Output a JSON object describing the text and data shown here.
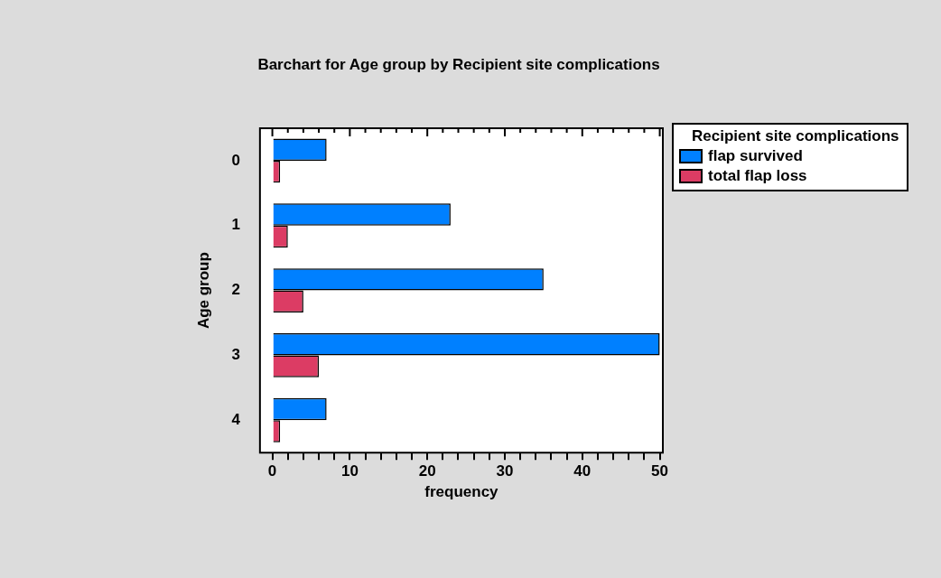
{
  "chart_data": {
    "type": "bar",
    "orientation": "horizontal",
    "title": "Barchart for Age group by Recipient site complications",
    "xlabel": "frequency",
    "ylabel": "Age group",
    "legend_title": "Recipient site complications",
    "legend": "top right",
    "categories": [
      "0",
      "1",
      "2",
      "3",
      "4"
    ],
    "series": [
      {
        "name": "flap survived",
        "color": "#0080ff",
        "values": [
          7,
          23,
          35,
          50,
          7
        ]
      },
      {
        "name": "total flap loss",
        "color": "#dc3c64",
        "values": [
          1,
          2,
          4,
          6,
          1
        ]
      }
    ],
    "xlim": [
      -1.6,
      50.4
    ],
    "xticks": [
      0,
      {
        "value": 2,
        "label": null
      },
      {
        "value": 4,
        "label": null
      },
      {
        "value": 6,
        "label": null
      },
      {
        "value": 8,
        "label": null
      },
      10,
      {
        "value": 12,
        "label": null
      },
      {
        "value": 14,
        "label": null
      },
      {
        "value": 16,
        "label": null
      },
      {
        "value": 18,
        "label": null
      },
      20,
      {
        "value": 22,
        "label": null
      },
      {
        "value": 24,
        "label": null
      },
      {
        "value": 26,
        "label": null
      },
      {
        "value": 28,
        "label": null
      },
      30,
      {
        "value": 32,
        "label": null
      },
      {
        "value": 34,
        "label": null
      },
      {
        "value": 36,
        "label": null
      },
      {
        "value": 38,
        "label": null
      },
      40,
      {
        "value": 42,
        "label": null
      },
      {
        "value": 44,
        "label": null
      },
      {
        "value": 46,
        "label": null
      },
      {
        "value": 48,
        "label": null
      },
      50
    ],
    "grid": false
  }
}
